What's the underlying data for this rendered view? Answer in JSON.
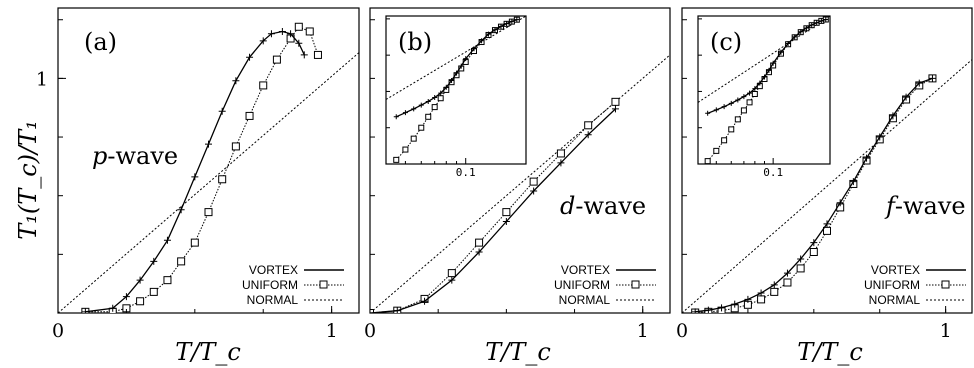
{
  "chart_data": {
    "type": "line",
    "ylabel": "T₁(T_c)/T₁",
    "legend": [
      {
        "key": "vortex",
        "label": "VORTEX",
        "style": "solid",
        "marker": "plus"
      },
      {
        "key": "uniform",
        "label": "UNIFORM",
        "style": "dotted",
        "marker": "square"
      },
      {
        "key": "normal",
        "label": "NORMAL",
        "style": "dotted",
        "marker": "none"
      }
    ],
    "panels": [
      {
        "id": "a",
        "label": "(a)",
        "wave_label": "p-wave",
        "xlabel": "T/T_c",
        "xlim": [
          0,
          1.1
        ],
        "ylim": [
          0,
          1.3
        ],
        "xticks": [
          {
            "v": 0,
            "label": "0"
          },
          {
            "v": 1,
            "label": "1"
          }
        ],
        "yticks": [
          {
            "v": 1,
            "label": "1"
          }
        ],
        "series": {
          "vortex": {
            "x": [
              0.1,
              0.2,
              0.25,
              0.3,
              0.35,
              0.4,
              0.45,
              0.5,
              0.55,
              0.6,
              0.65,
              0.7,
              0.75,
              0.78,
              0.82,
              0.85,
              0.88,
              0.9
            ],
            "y": [
              0.005,
              0.02,
              0.07,
              0.14,
              0.22,
              0.31,
              0.44,
              0.58,
              0.72,
              0.86,
              0.99,
              1.09,
              1.16,
              1.19,
              1.2,
              1.19,
              1.15,
              1.1
            ]
          },
          "uniform": {
            "x": [
              0.1,
              0.2,
              0.25,
              0.3,
              0.35,
              0.4,
              0.45,
              0.5,
              0.55,
              0.6,
              0.65,
              0.7,
              0.75,
              0.8,
              0.85,
              0.88,
              0.92,
              0.95
            ],
            "y": [
              0.005,
              0.005,
              0.02,
              0.05,
              0.09,
              0.14,
              0.22,
              0.3,
              0.43,
              0.57,
              0.71,
              0.84,
              0.97,
              1.08,
              1.17,
              1.22,
              1.2,
              1.1
            ]
          },
          "normal": {
            "x": [
              0,
              1.1
            ],
            "y": [
              0,
              1.11
            ]
          }
        }
      },
      {
        "id": "b",
        "label": "(b)",
        "wave_label": "d-wave",
        "xlabel": "T/T_c",
        "xlim": [
          0,
          1.1
        ],
        "ylim": [
          0,
          1.3
        ],
        "xticks": [
          {
            "v": 0,
            "label": "0"
          },
          {
            "v": 1,
            "label": "1"
          }
        ],
        "yticks": [],
        "series": {
          "vortex": {
            "x": [
              0,
              0.1,
              0.2,
              0.3,
              0.4,
              0.5,
              0.6,
              0.7,
              0.8,
              0.9
            ],
            "y": [
              0,
              0.01,
              0.05,
              0.14,
              0.26,
              0.39,
              0.52,
              0.64,
              0.76,
              0.87
            ]
          },
          "uniform": {
            "x": [
              0,
              0.1,
              0.2,
              0.3,
              0.4,
              0.5,
              0.6,
              0.7,
              0.8,
              0.9
            ],
            "y": [
              0,
              0.01,
              0.06,
              0.17,
              0.3,
              0.43,
              0.56,
              0.68,
              0.8,
              0.9
            ]
          },
          "normal": {
            "x": [
              0,
              1.1
            ],
            "y": [
              0,
              1.1
            ]
          }
        },
        "inset": {
          "xscale": "log",
          "yscale": "log",
          "xlim": [
            0.04,
            0.2
          ],
          "ylim": [
            0.0001,
            1.2
          ],
          "xticks": [
            {
              "v": 0.1,
              "label": "0.1"
            }
          ],
          "series": {
            "vortex": {
              "x": [
                0.045,
                0.05,
                0.055,
                0.06,
                0.065,
                0.07,
                0.075,
                0.08,
                0.085,
                0.09,
                0.095,
                0.1,
                0.11,
                0.12,
                0.13,
                0.14,
                0.15,
                0.16,
                0.17,
                0.18
              ],
              "y": [
                0.002,
                0.0026,
                0.0033,
                0.0042,
                0.0053,
                0.0068,
                0.009,
                0.013,
                0.02,
                0.032,
                0.05,
                0.08,
                0.15,
                0.25,
                0.38,
                0.5,
                0.62,
                0.74,
                0.85,
                0.95
              ]
            },
            "uniform": {
              "x": [
                0.045,
                0.05,
                0.055,
                0.06,
                0.065,
                0.07,
                0.075,
                0.08,
                0.085,
                0.09,
                0.095,
                0.1,
                0.11,
                0.12,
                0.13,
                0.14,
                0.15,
                0.16,
                0.17,
                0.18
              ],
              "y": [
                0.00013,
                0.00025,
                0.0005,
                0.001,
                0.002,
                0.0037,
                0.0065,
                0.011,
                0.018,
                0.028,
                0.043,
                0.065,
                0.13,
                0.23,
                0.36,
                0.49,
                0.61,
                0.73,
                0.84,
                0.95
              ]
            },
            "normal": {
              "x": [
                0.04,
                0.2
              ],
              "y": [
                0.006,
                1.2
              ]
            }
          }
        }
      },
      {
        "id": "c",
        "label": "(c)",
        "wave_label": "f-wave",
        "xlabel": "T/T_c",
        "xlim": [
          0,
          1.1
        ],
        "ylim": [
          0,
          1.3
        ],
        "xticks": [
          {
            "v": 0,
            "label": "0"
          },
          {
            "v": 1,
            "label": "1"
          }
        ],
        "yticks": [],
        "series": {
          "vortex": {
            "x": [
              0.05,
              0.1,
              0.15,
              0.2,
              0.25,
              0.3,
              0.35,
              0.4,
              0.45,
              0.5,
              0.55,
              0.6,
              0.65,
              0.7,
              0.75,
              0.8,
              0.85,
              0.9,
              0.95
            ],
            "y": [
              0.005,
              0.012,
              0.022,
              0.038,
              0.058,
              0.085,
              0.12,
              0.17,
              0.23,
              0.3,
              0.38,
              0.47,
              0.56,
              0.66,
              0.75,
              0.84,
              0.92,
              0.98,
              1.0
            ]
          },
          "uniform": {
            "x": [
              0.05,
              0.1,
              0.15,
              0.2,
              0.25,
              0.3,
              0.35,
              0.4,
              0.45,
              0.5,
              0.55,
              0.6,
              0.65,
              0.7,
              0.75,
              0.8,
              0.85,
              0.9,
              0.95
            ],
            "y": [
              0.002,
              0.005,
              0.01,
              0.02,
              0.035,
              0.058,
              0.09,
              0.13,
              0.19,
              0.26,
              0.35,
              0.45,
              0.55,
              0.65,
              0.74,
              0.83,
              0.91,
              0.97,
              1.0
            ]
          },
          "normal": {
            "x": [
              0,
              1.1
            ],
            "y": [
              0,
              1.08
            ]
          }
        },
        "inset": {
          "xscale": "log",
          "yscale": "log",
          "xlim": [
            0.04,
            0.2
          ],
          "ylim": [
            0.0001,
            1.2
          ],
          "xticks": [
            {
              "v": 0.1,
              "label": "0.1"
            }
          ],
          "series": {
            "vortex": {
              "x": [
                0.045,
                0.05,
                0.055,
                0.06,
                0.065,
                0.07,
                0.075,
                0.08,
                0.085,
                0.09,
                0.095,
                0.1,
                0.11,
                0.12,
                0.13,
                0.14,
                0.15,
                0.16,
                0.17,
                0.18,
                0.19
              ],
              "y": [
                0.0025,
                0.0031,
                0.0038,
                0.0047,
                0.0058,
                0.0072,
                0.009,
                0.012,
                0.017,
                0.025,
                0.038,
                0.06,
                0.12,
                0.21,
                0.32,
                0.44,
                0.56,
                0.68,
                0.78,
                0.88,
                0.96
              ]
            },
            "uniform": {
              "x": [
                0.045,
                0.05,
                0.055,
                0.06,
                0.065,
                0.07,
                0.075,
                0.08,
                0.085,
                0.09,
                0.095,
                0.1,
                0.11,
                0.12,
                0.13,
                0.14,
                0.15,
                0.16,
                0.17,
                0.18,
                0.19
              ],
              "y": [
                0.00012,
                0.00023,
                0.00045,
                0.0009,
                0.0017,
                0.003,
                0.005,
                0.0085,
                0.014,
                0.022,
                0.034,
                0.052,
                0.11,
                0.2,
                0.31,
                0.43,
                0.55,
                0.67,
                0.78,
                0.88,
                0.96
              ]
            },
            "normal": {
              "x": [
                0.04,
                0.2
              ],
              "y": [
                0.005,
                1.2
              ]
            }
          }
        }
      }
    ]
  }
}
